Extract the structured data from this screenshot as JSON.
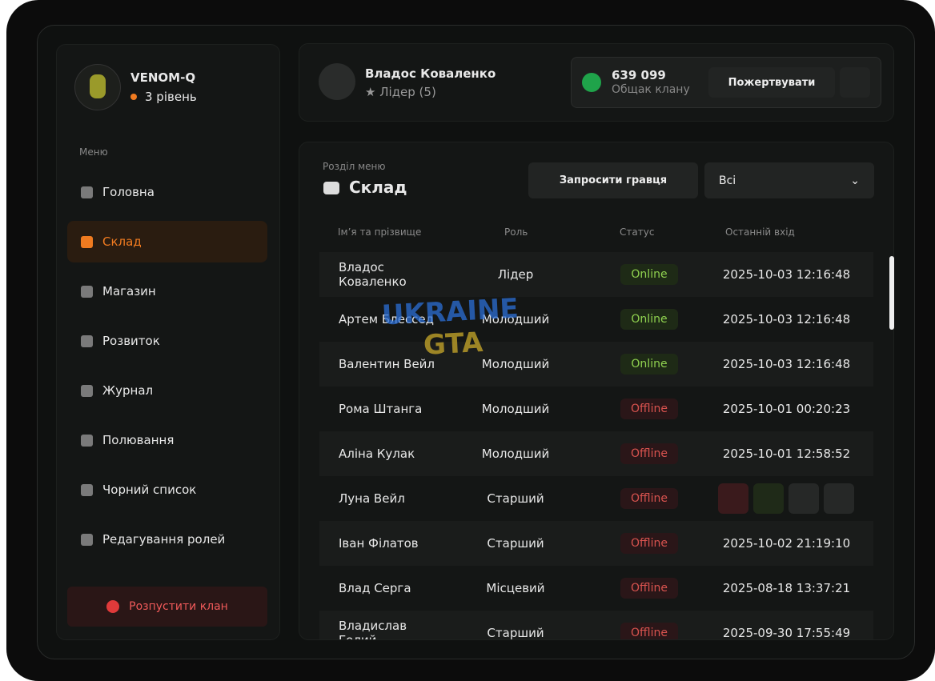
{
  "clan": {
    "name": "VENOM-Q",
    "level": "3 рівень"
  },
  "menu_label": "Меню",
  "menu": [
    "Головна",
    "Склад",
    "Магазин",
    "Розвиток",
    "Журнал",
    "Полювання",
    "Чорний список",
    "Редагування ролей"
  ],
  "disband": "Розпустити клан",
  "user": {
    "name": "Владос Коваленко",
    "role": "Лідер (5)"
  },
  "balance": {
    "amount": "639 099",
    "label": "Общак клану",
    "donate": "Пожертвувати"
  },
  "section": {
    "label": "Розділ меню",
    "title": "Склад"
  },
  "invite": "Запросити гравця",
  "filter": "Всі",
  "watermark": [
    "UKRAINE",
    "GTA"
  ],
  "table": {
    "columns": [
      "Ім’я та прізвище",
      "Роль",
      "Статус",
      "Останній вхід"
    ],
    "rows": [
      {
        "name": "Владос Коваленко",
        "role": "Лідер",
        "status": "Online",
        "last_login": "2025-10-03 12:16:48"
      },
      {
        "name": "Артем Блессед",
        "role": "Молодший",
        "status": "Online",
        "last_login": "2025-10-03 12:16:48"
      },
      {
        "name": "Валентин Вейл",
        "role": "Молодший",
        "status": "Online",
        "last_login": "2025-10-03 12:16:48"
      },
      {
        "name": "Рома Штанга",
        "role": "Молодший",
        "status": "Offline",
        "last_login": "2025-10-01 00:20:23"
      },
      {
        "name": "Аліна Кулак",
        "role": "Молодший",
        "status": "Offline",
        "last_login": "2025-10-01 12:58:52"
      },
      {
        "name": "Луна Вейл",
        "role": "Старший",
        "status": "Offline"
      },
      {
        "name": "Іван Філатов",
        "role": "Старший",
        "status": "Offline",
        "last_login": "2025-10-02 21:19:10"
      },
      {
        "name": "Влад Серга",
        "role": "Місцевий",
        "status": "Offline",
        "last_login": "2025-08-18 13:37:21"
      },
      {
        "name": "Владислав Голий",
        "role": "Старший",
        "status": "Offline",
        "last_login": "2025-09-30 17:55:49"
      }
    ]
  }
}
